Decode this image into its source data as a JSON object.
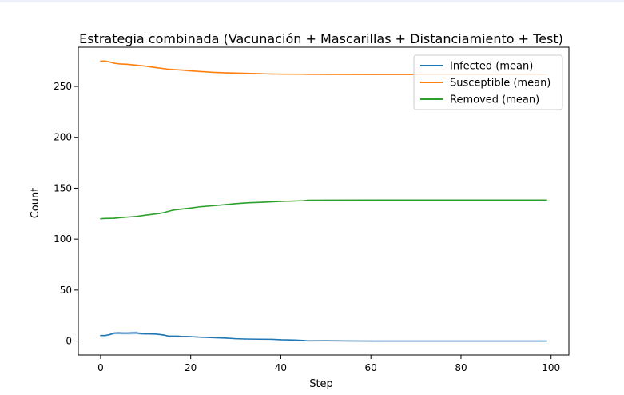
{
  "chart_data": {
    "type": "line",
    "title": "Estrategia combinada (Vacunación + Mascarillas + Distanciamiento + Test)",
    "xlabel": "Step",
    "ylabel": "Count",
    "xlim": [
      -4.95,
      103.95
    ],
    "ylim": [
      -13.7,
      288.5
    ],
    "xticks": [
      0,
      20,
      40,
      60,
      80,
      100
    ],
    "yticks": [
      0,
      50,
      100,
      150,
      200,
      250
    ],
    "grid": false,
    "legend_position": "top-right",
    "series": [
      {
        "name": "Infected (mean)",
        "color": "#1f77b4",
        "band_color": "#aec7e8",
        "points": [
          [
            0,
            5.4
          ],
          [
            1,
            5.4
          ],
          [
            2,
            6.3
          ],
          [
            3,
            7.7
          ],
          [
            4,
            7.9
          ],
          [
            5,
            7.7
          ],
          [
            6,
            7.7
          ],
          [
            7,
            7.9
          ],
          [
            8,
            8.0
          ],
          [
            9,
            7.2
          ],
          [
            10,
            7.1
          ],
          [
            12,
            6.9
          ],
          [
            13,
            6.5
          ],
          [
            14,
            5.9
          ],
          [
            15,
            4.9
          ],
          [
            17,
            4.8
          ],
          [
            18,
            4.5
          ],
          [
            20,
            4.3
          ],
          [
            22,
            3.8
          ],
          [
            25,
            3.3
          ],
          [
            28,
            2.8
          ],
          [
            30,
            2.3
          ],
          [
            32,
            2.0
          ],
          [
            35,
            1.8
          ],
          [
            38,
            1.7
          ],
          [
            40,
            1.3
          ],
          [
            43,
            1.0
          ],
          [
            45,
            0.6
          ],
          [
            46,
            0.2
          ],
          [
            50,
            0.3
          ],
          [
            55,
            0.1
          ],
          [
            60,
            0.0
          ],
          [
            99,
            0.0
          ]
        ],
        "band_width": [
          0.4,
          0.4,
          0.7,
          1.2,
          1.3,
          1.3,
          1.3,
          1.4,
          1.4,
          1.1,
          1.0,
          0.9,
          0.8,
          0.7,
          0.6,
          0.6,
          0.5,
          0.5,
          0.4,
          0.4,
          0.3,
          0.3,
          0.3,
          0.2,
          0.2,
          0.2,
          0.2,
          0.1,
          0.1,
          0.1,
          0.1,
          0.0,
          0.0
        ]
      },
      {
        "name": "Susceptible (mean)",
        "color": "#ff7f0e",
        "points": [
          [
            0,
            274.8
          ],
          [
            1,
            274.8
          ],
          [
            2,
            274.0
          ],
          [
            3,
            272.8
          ],
          [
            4,
            272.2
          ],
          [
            6,
            271.7
          ],
          [
            8,
            270.8
          ],
          [
            10,
            269.9
          ],
          [
            12,
            268.6
          ],
          [
            15,
            266.9
          ],
          [
            18,
            266.1
          ],
          [
            20,
            265.3
          ],
          [
            25,
            263.8
          ],
          [
            28,
            263.3
          ],
          [
            30,
            263.1
          ],
          [
            35,
            262.6
          ],
          [
            38,
            262.2
          ],
          [
            40,
            262.1
          ],
          [
            45,
            262.0
          ],
          [
            50,
            261.9
          ],
          [
            60,
            261.8
          ],
          [
            99,
            261.8
          ]
        ]
      },
      {
        "name": "Removed (mean)",
        "color": "#2ca02c",
        "points": [
          [
            0,
            120.0
          ],
          [
            1,
            120.3
          ],
          [
            3,
            120.5
          ],
          [
            5,
            121.3
          ],
          [
            8,
            122.3
          ],
          [
            10,
            123.5
          ],
          [
            13,
            125.2
          ],
          [
            14,
            126.0
          ],
          [
            16,
            128.4
          ],
          [
            18,
            129.5
          ],
          [
            20,
            130.5
          ],
          [
            22,
            131.7
          ],
          [
            25,
            132.8
          ],
          [
            28,
            133.9
          ],
          [
            30,
            134.8
          ],
          [
            33,
            135.7
          ],
          [
            36,
            136.2
          ],
          [
            40,
            137.0
          ],
          [
            43,
            137.4
          ],
          [
            45,
            137.7
          ],
          [
            46,
            138.1
          ],
          [
            50,
            138.2
          ],
          [
            60,
            138.3
          ],
          [
            99,
            138.3
          ]
        ]
      }
    ]
  }
}
